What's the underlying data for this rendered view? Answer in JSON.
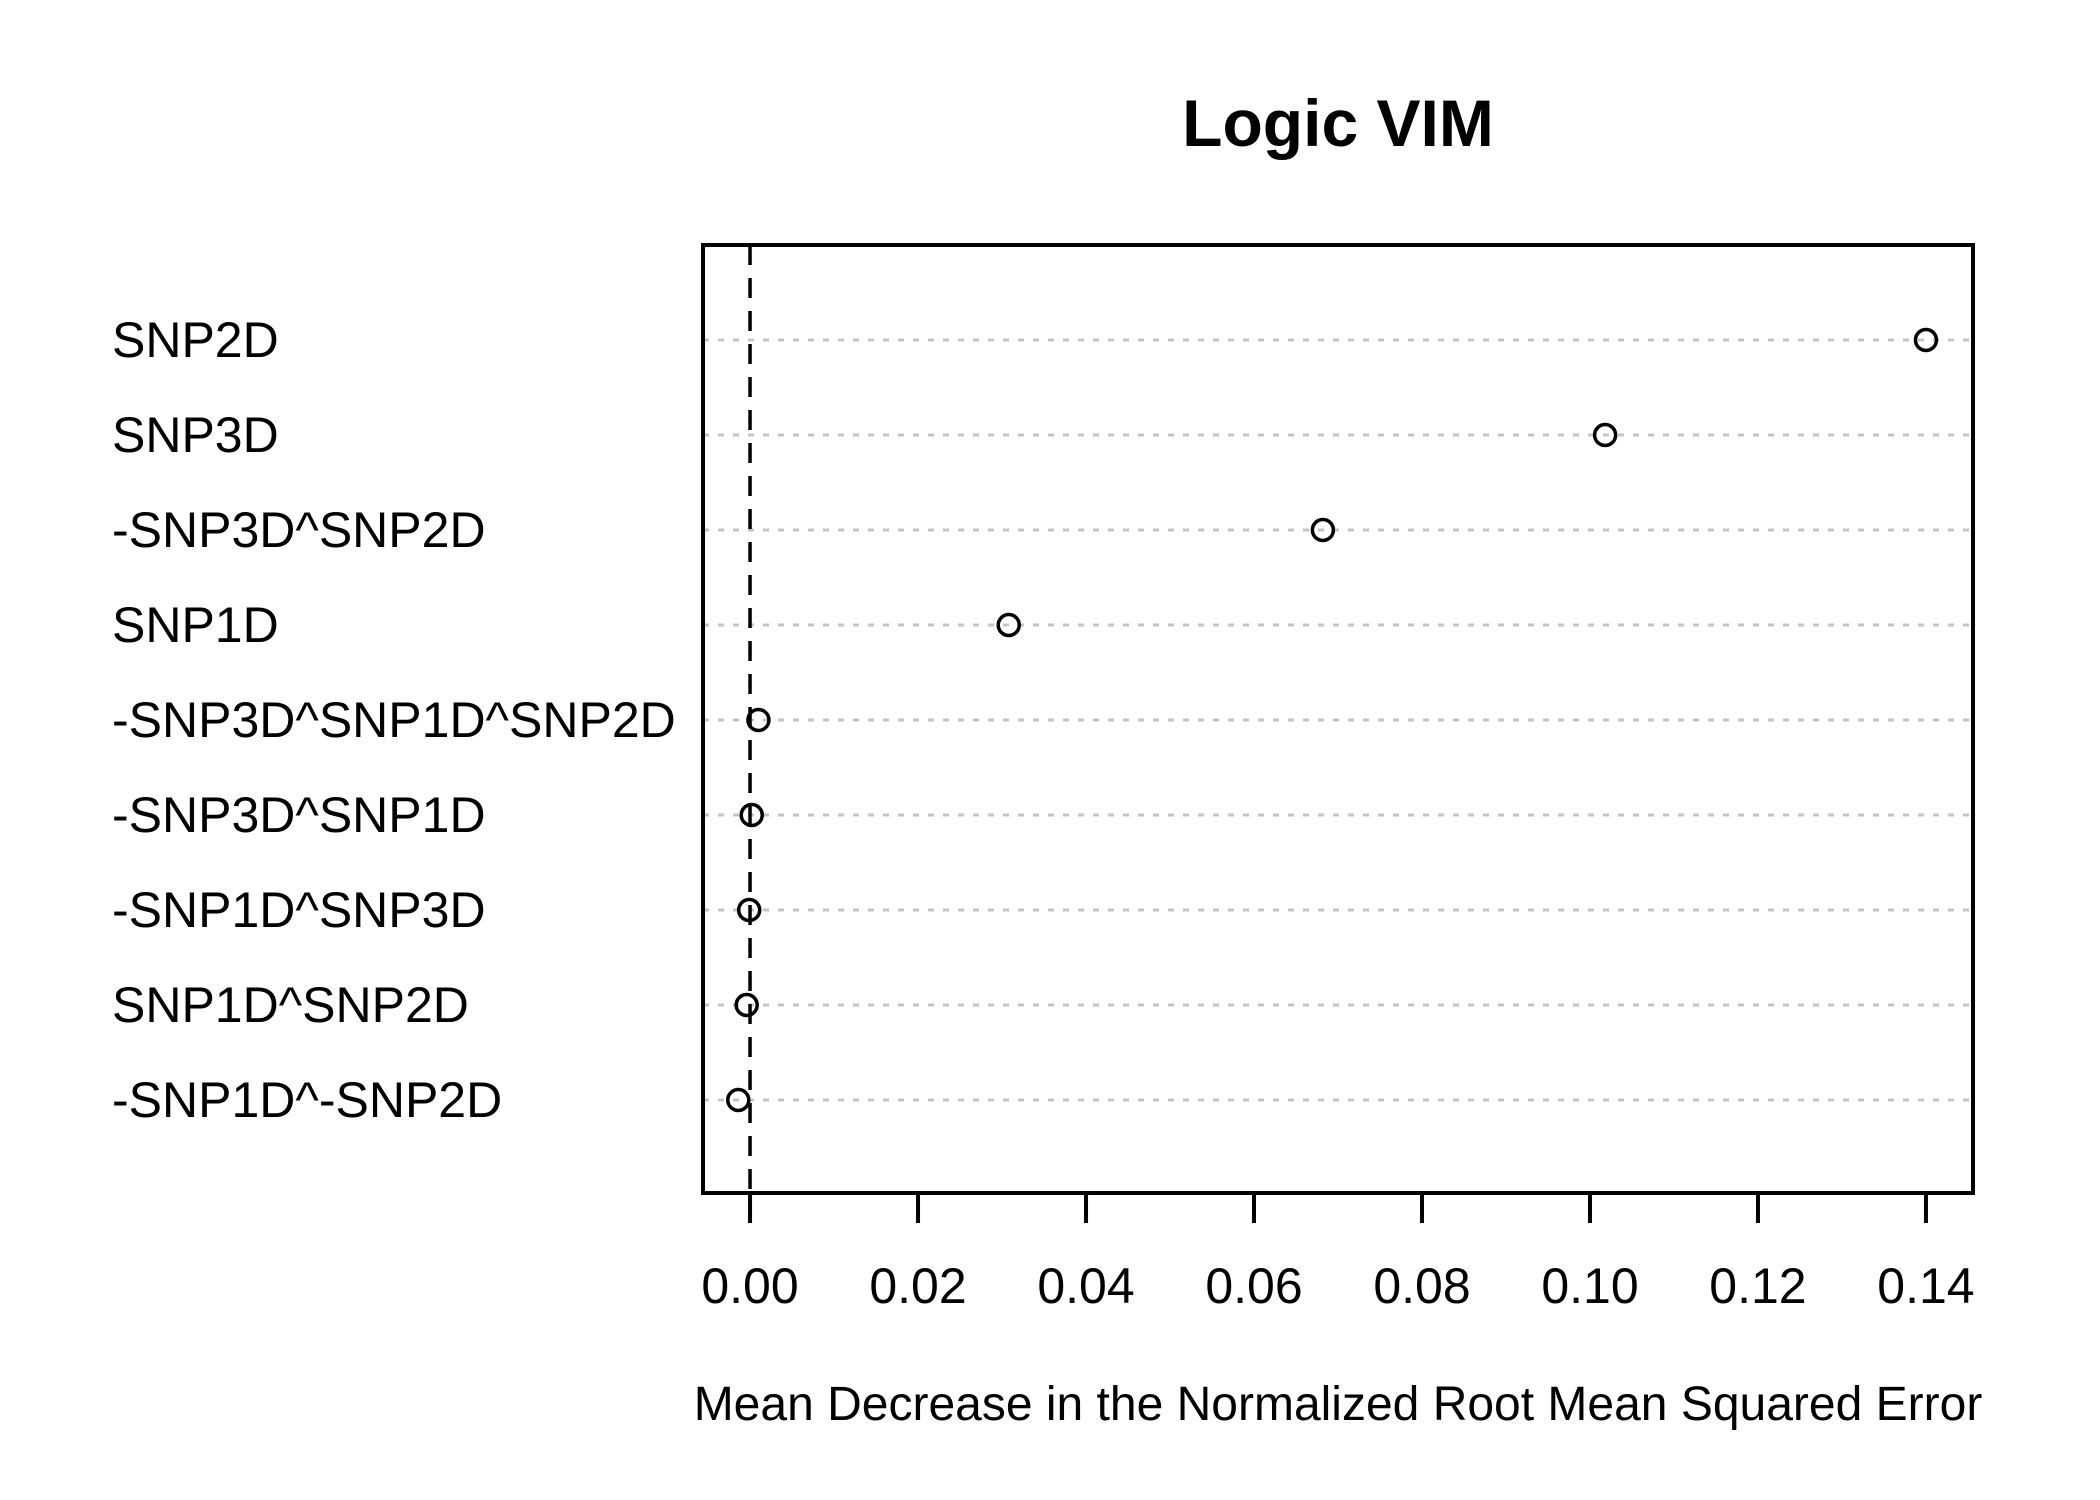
{
  "page": {
    "background": "#ffffff"
  },
  "chart_data": {
    "type": "scatter",
    "variant": "dotchart",
    "title": "Logic VIM",
    "xlabel": "Mean Decrease in the Normalized Root Mean Squared Error",
    "ylabel": "",
    "categories": [
      "SNP2D",
      "SNP3D",
      "-SNP3D^SNP2D",
      "SNP1D",
      "-SNP3D^SNP1D^SNP2D",
      "-SNP3D^SNP1D",
      "-SNP1D^SNP3D",
      "SNP1D^SNP2D",
      "-SNP1D^-SNP2D"
    ],
    "values": [
      0.14,
      0.1018,
      0.0682,
      0.0308,
      0.001,
      0.0002,
      -0.0001,
      -0.0004,
      -0.0014
    ],
    "x_ticks": {
      "values": [
        0.0,
        0.02,
        0.04,
        0.06,
        0.08,
        0.1,
        0.12,
        0.14
      ],
      "labels": [
        "0.00",
        "0.02",
        "0.04",
        "0.06",
        "0.08",
        "0.10",
        "0.12",
        "0.14"
      ]
    },
    "xlim": [
      -0.0056,
      0.1456
    ],
    "reference_line_x": 0,
    "grid": {
      "horizontal_dotted_per_category": true,
      "vertical": false
    },
    "legend": "none",
    "marker": "open-circle",
    "colors": {
      "background": "#ffffff",
      "text": "#000000",
      "axis": "#000000",
      "marker_stroke": "#000000",
      "marker_fill": "none",
      "grid": "#c4c4c4",
      "reference_line": "#000000"
    }
  }
}
